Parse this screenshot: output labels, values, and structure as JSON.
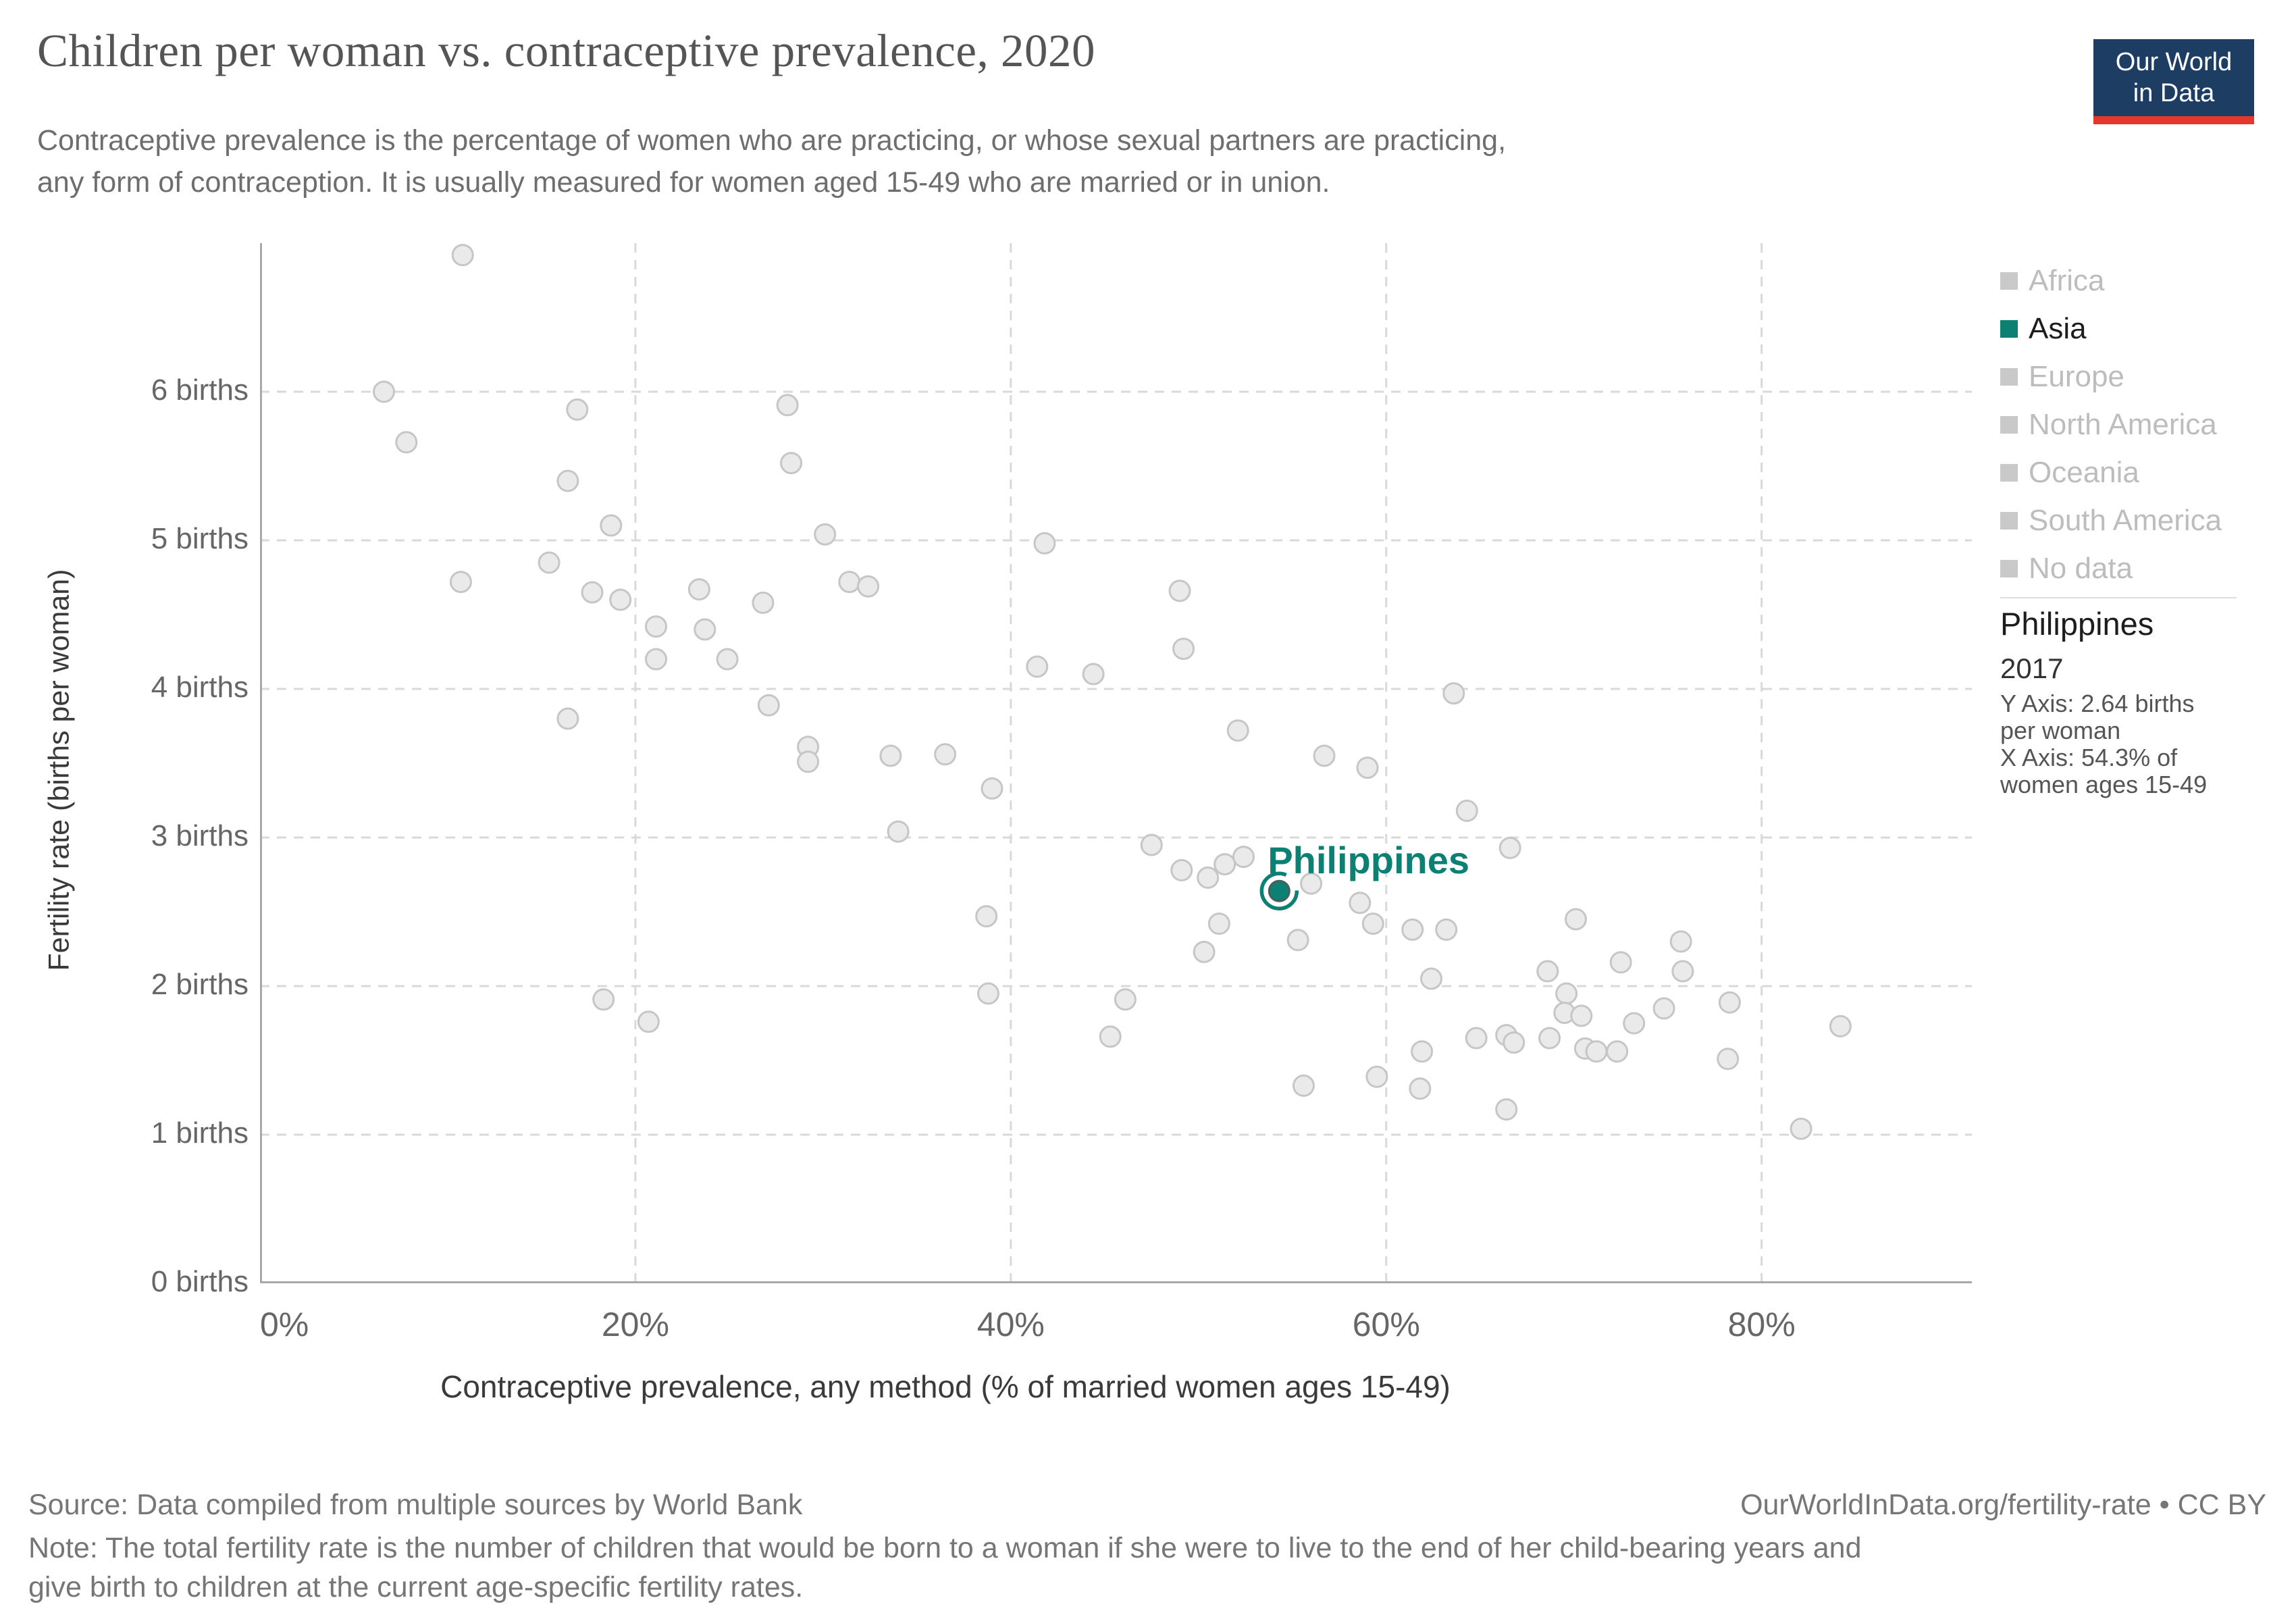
{
  "header": {
    "title": "Children per woman vs. contraceptive prevalence, 2020",
    "subtitle_line1": "Contraceptive prevalence is the percentage of women who are practicing, or whose sexual partners are practicing,",
    "subtitle_line2": "any form of contraception. It is usually measured for women aged 15-49 who are married or in union."
  },
  "logo": {
    "line1": "Our World",
    "line2": "in Data"
  },
  "legend": {
    "items": [
      {
        "label": "Africa",
        "active": false
      },
      {
        "label": "Asia",
        "active": true
      },
      {
        "label": "Europe",
        "active": false
      },
      {
        "label": "North America",
        "active": false
      },
      {
        "label": "Oceania",
        "active": false
      },
      {
        "label": "South America",
        "active": false
      },
      {
        "label": "No data",
        "active": false
      }
    ]
  },
  "info_panel": {
    "country": "Philippines",
    "year": "2017",
    "detail_lines": [
      "Y Axis: 2.64 births",
      "per woman",
      "X Axis: 54.3% of",
      "women ages 15-49"
    ]
  },
  "chart_data": {
    "type": "scatter",
    "title": "Children per woman vs. contraceptive prevalence, 2020",
    "xlabel": "Contraceptive prevalence, any method (% of married women ages 15-49)",
    "ylabel": "Fertility rate (births per woman)",
    "xlim": [
      0,
      91.2
    ],
    "ylim": [
      0,
      7
    ],
    "grid": true,
    "x_ticks": [
      {
        "v": 0,
        "label": "0%",
        "align": "start"
      },
      {
        "v": 20,
        "label": "20%",
        "align": "middle"
      },
      {
        "v": 40,
        "label": "40%",
        "align": "middle"
      },
      {
        "v": 60,
        "label": "60%",
        "align": "middle"
      },
      {
        "v": 80,
        "label": "80%",
        "align": "middle"
      }
    ],
    "y_ticks": [
      {
        "v": 0,
        "label": "0 births"
      },
      {
        "v": 1,
        "label": "1 births"
      },
      {
        "v": 2,
        "label": "2 births"
      },
      {
        "v": 3,
        "label": "3 births"
      },
      {
        "v": 4,
        "label": "4 births"
      },
      {
        "v": 5,
        "label": "5 births"
      },
      {
        "v": 6,
        "label": "6 births"
      }
    ],
    "points": [
      [
        10.8,
        6.92
      ],
      [
        6.6,
        6.0
      ],
      [
        16.9,
        5.88
      ],
      [
        7.8,
        5.66
      ],
      [
        28.1,
        5.91
      ],
      [
        16.4,
        5.4
      ],
      [
        28.3,
        5.52
      ],
      [
        18.7,
        5.1
      ],
      [
        30.1,
        5.04
      ],
      [
        41.8,
        4.98
      ],
      [
        15.4,
        4.85
      ],
      [
        10.7,
        4.72
      ],
      [
        17.7,
        4.65
      ],
      [
        19.2,
        4.6
      ],
      [
        23.4,
        4.67
      ],
      [
        26.8,
        4.58
      ],
      [
        31.4,
        4.72
      ],
      [
        32.4,
        4.69
      ],
      [
        21.1,
        4.42
      ],
      [
        23.7,
        4.4
      ],
      [
        21.1,
        4.2
      ],
      [
        24.9,
        4.2
      ],
      [
        41.4,
        4.15
      ],
      [
        44.4,
        4.1
      ],
      [
        27.1,
        3.89
      ],
      [
        16.4,
        3.8
      ],
      [
        29.2,
        3.61
      ],
      [
        29.2,
        3.51
      ],
      [
        33.6,
        3.55
      ],
      [
        36.5,
        3.56
      ],
      [
        49.0,
        4.66
      ],
      [
        49.2,
        4.27
      ],
      [
        63.6,
        3.97
      ],
      [
        52.1,
        3.72
      ],
      [
        56.7,
        3.55
      ],
      [
        39.0,
        3.33
      ],
      [
        34.0,
        3.04
      ],
      [
        38.7,
        2.47
      ],
      [
        38.8,
        1.95
      ],
      [
        18.3,
        1.91
      ],
      [
        20.7,
        1.76
      ],
      [
        59.0,
        3.47
      ],
      [
        64.3,
        3.18
      ],
      [
        47.5,
        2.95
      ],
      [
        66.6,
        2.93
      ],
      [
        49.1,
        2.78
      ],
      [
        50.5,
        2.73
      ],
      [
        51.4,
        2.82
      ],
      [
        52.4,
        2.87
      ],
      [
        56.0,
        2.69
      ],
      [
        58.6,
        2.56
      ],
      [
        59.3,
        2.42
      ],
      [
        51.1,
        2.42
      ],
      [
        50.3,
        2.23
      ],
      [
        55.3,
        2.31
      ],
      [
        61.4,
        2.38
      ],
      [
        63.2,
        2.38
      ],
      [
        62.4,
        2.05
      ],
      [
        68.6,
        2.1
      ],
      [
        46.1,
        1.91
      ],
      [
        45.3,
        1.66
      ],
      [
        64.8,
        1.65
      ],
      [
        66.4,
        1.67
      ],
      [
        66.8,
        1.62
      ],
      [
        61.9,
        1.56
      ],
      [
        59.5,
        1.39
      ],
      [
        61.8,
        1.31
      ],
      [
        55.6,
        1.33
      ],
      [
        66.4,
        1.17
      ],
      [
        70.1,
        2.45
      ],
      [
        75.7,
        2.3
      ],
      [
        72.5,
        2.16
      ],
      [
        75.8,
        2.1
      ],
      [
        69.6,
        1.95
      ],
      [
        69.5,
        1.82
      ],
      [
        70.4,
        1.8
      ],
      [
        74.8,
        1.85
      ],
      [
        78.3,
        1.89
      ],
      [
        73.2,
        1.75
      ],
      [
        68.7,
        1.65
      ],
      [
        70.6,
        1.58
      ],
      [
        71.2,
        1.56
      ],
      [
        72.3,
        1.56
      ],
      [
        78.2,
        1.51
      ],
      [
        84.2,
        1.73
      ],
      [
        82.1,
        1.04
      ]
    ],
    "highlight": {
      "x": 54.3,
      "y": 2.64,
      "label": "Philippines"
    },
    "legend_position": "right"
  },
  "axis_titles": {
    "x": "Contraceptive prevalence, any method (% of married women ages 15-49)",
    "y": "Fertility rate (births per woman)"
  },
  "footer": {
    "source": "Source: Data compiled from multiple sources by World Bank",
    "attribution": "OurWorldInData.org/fertility-rate • CC BY",
    "note_line1": "Note: The total fertility rate is the number of children that would be born to a woman if she were to live to the end of her child-bearing years and",
    "note_line2": "give birth to children at the current age-specific fertility rates."
  },
  "colors": {
    "accent": "#0c8073",
    "highlight_dot_stroke": "#4a5f5d",
    "dot_fill": "#eaeaea",
    "dot_stroke": "#c6c6c6",
    "grid": "#d9d9d9",
    "axis_line": "#a8a8a8",
    "legend_inactive_text": "#bdbdbd",
    "legend_inactive_swatch": "#c9c9c9",
    "legend_active_text": "#1d1d1d",
    "logo_navy": "#1d3d63",
    "logo_red": "#e5372c"
  }
}
